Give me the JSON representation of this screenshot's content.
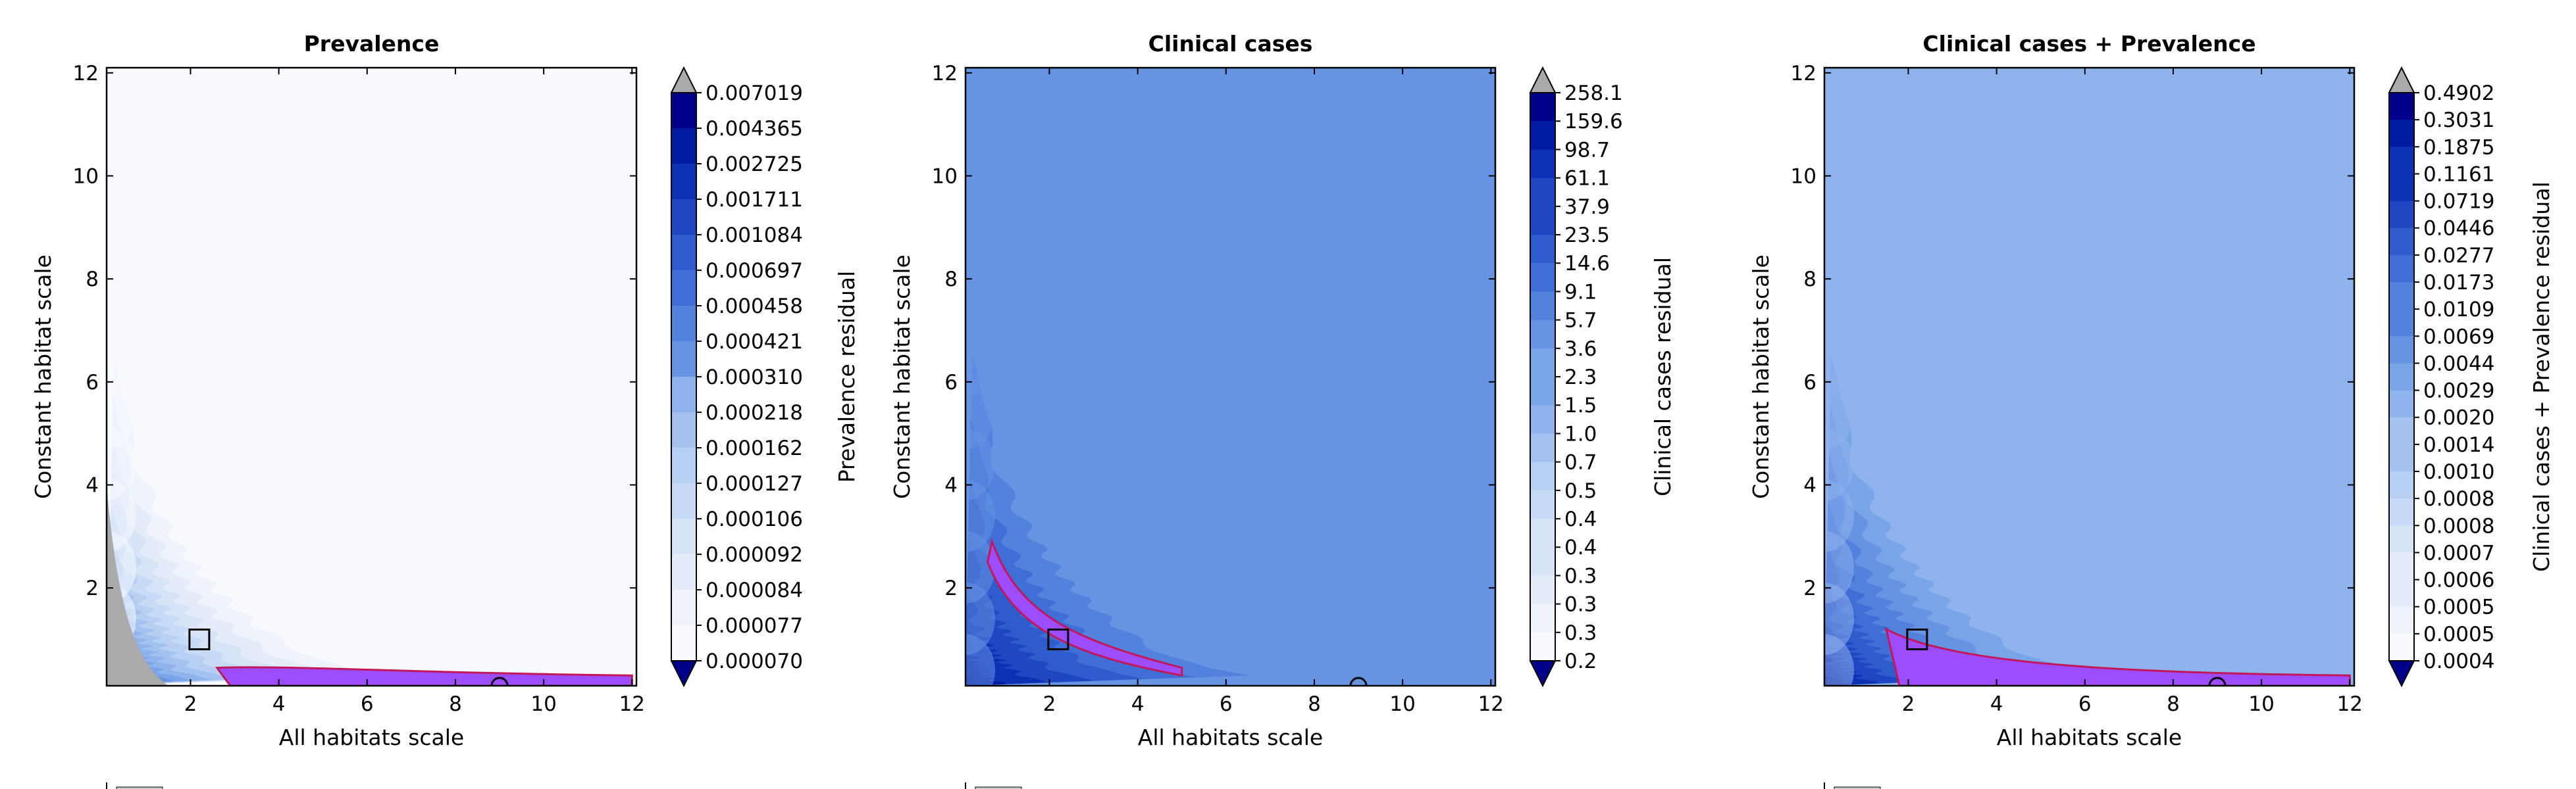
{
  "colors": {
    "scale": [
      "#00008b",
      "#001aa0",
      "#0d31b3",
      "#1f47c2",
      "#2f5ccd",
      "#3f6fd6",
      "#5282dd",
      "#6694e3",
      "#7aa4e8",
      "#8fb3ec",
      "#a3c2f0",
      "#b6cff3",
      "#c8dbf6",
      "#d7e4f8",
      "#e4ecfa",
      "#eff4fc",
      "#f8fafd"
    ],
    "under": "#00008b",
    "over": "#aaaaaa",
    "contour": "#c2185b",
    "region_fill": "#9b4dff",
    "grey_region": "#aaaaaa"
  },
  "chart_data": [
    {
      "type": "heatmap",
      "title": "Prevalence",
      "xlabel": "All habitats scale",
      "ylabel": "Constant habitat scale",
      "xlim": [
        0.1,
        12.1
      ],
      "ylim": [
        0.1,
        12.1
      ],
      "xticks": [
        2,
        4,
        6,
        8,
        10,
        12
      ],
      "yticks": [
        2,
        4,
        6,
        8,
        10,
        12
      ],
      "colorbar_label": "Prevalence residual",
      "colorbar_ticks": [
        "0.007019",
        "0.004365",
        "0.002725",
        "0.001711",
        "0.001084",
        "0.000697",
        "0.000458",
        "0.000421",
        "0.000310",
        "0.000218",
        "0.000162",
        "0.000127",
        "0.000106",
        "0.000092",
        "0.000084",
        "0.000077",
        "0.000070"
      ],
      "marker_square": [
        2.2,
        1.0
      ],
      "marker_circle": [
        9.0,
        0.1
      ],
      "base_level": 15,
      "decay": 2.1,
      "grey_corner": true,
      "region_x": [
        2.6,
        12.0
      ],
      "region_y0": 0.45
    },
    {
      "type": "heatmap",
      "title": "Clinical cases",
      "xlabel": "All habitats scale",
      "ylabel": "Constant habitat scale",
      "xlim": [
        0.1,
        12.1
      ],
      "ylim": [
        0.1,
        12.1
      ],
      "xticks": [
        2,
        4,
        6,
        8,
        10,
        12
      ],
      "yticks": [
        2,
        4,
        6,
        8,
        10,
        12
      ],
      "colorbar_label": "Clinical cases residual",
      "colorbar_ticks": [
        "258.1",
        "159.6",
        "98.7",
        "61.1",
        "37.9",
        "23.5",
        "14.6",
        "9.1",
        "5.7",
        "3.6",
        "2.3",
        "1.5",
        "1.0",
        "0.7",
        "0.5",
        "0.4",
        "0.4",
        "0.3",
        "0.3",
        "0.3",
        "0.2"
      ],
      "marker_square": [
        2.2,
        1.0
      ],
      "marker_circle": [
        9.0,
        0.1
      ],
      "base_level": 6,
      "decay": 1.2,
      "grey_corner": false,
      "region_x": [
        0.7,
        5.0
      ],
      "region_y0": 2.9
    },
    {
      "type": "heatmap",
      "title": "Clinical cases + Prevalence",
      "xlabel": "All habitats scale",
      "ylabel": "Constant habitat scale",
      "xlim": [
        0.1,
        12.1
      ],
      "ylim": [
        0.1,
        12.1
      ],
      "xticks": [
        2,
        4,
        6,
        8,
        10,
        12
      ],
      "yticks": [
        2,
        4,
        6,
        8,
        10,
        12
      ],
      "colorbar_label": "Clinical cases + Prevalence residual",
      "colorbar_ticks": [
        "0.4902",
        "0.3031",
        "0.1875",
        "0.1161",
        "0.0719",
        "0.0446",
        "0.0277",
        "0.0173",
        "0.0109",
        "0.0069",
        "0.0044",
        "0.0029",
        "0.0020",
        "0.0014",
        "0.0010",
        "0.0008",
        "0.0008",
        "0.0007",
        "0.0006",
        "0.0005",
        "0.0005",
        "0.0004"
      ],
      "marker_square": [
        2.2,
        1.0
      ],
      "marker_circle": [
        9.0,
        0.1
      ],
      "base_level": 8,
      "decay": 1.3,
      "grey_corner": false,
      "region_x": [
        1.5,
        12.0
      ],
      "region_y0": 1.2
    }
  ]
}
